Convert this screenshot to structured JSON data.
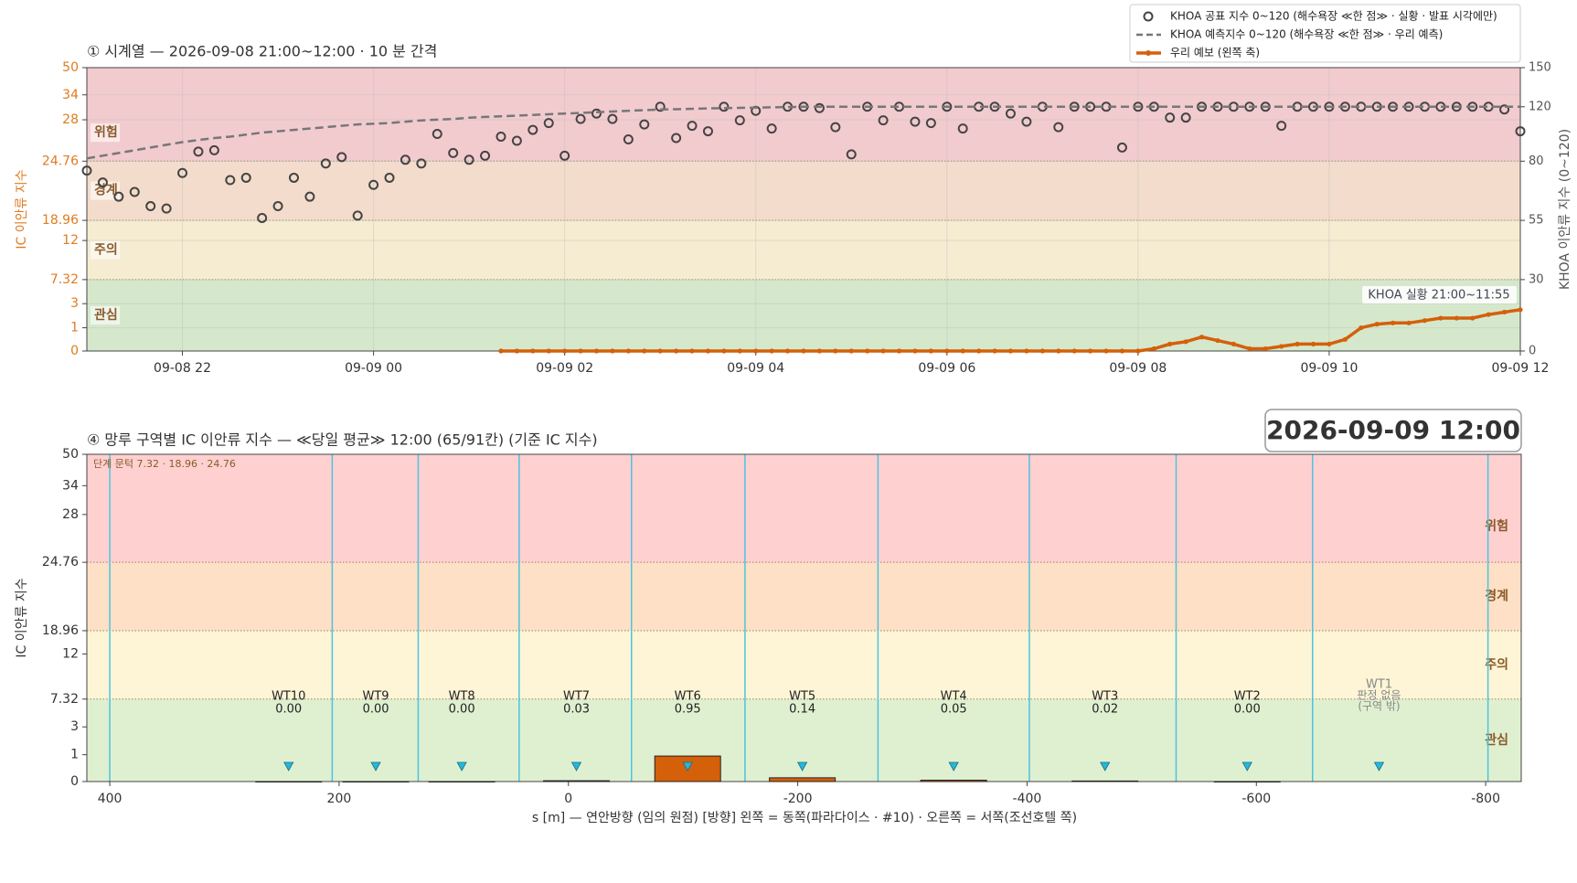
{
  "chart_data": [
    {
      "type": "line",
      "title": "① 시계열 — 2026-09-08 21:00~12:00 · 10 분 간격",
      "ylabel": "IC 이안류 지수",
      "y2label": "KHOA 이안류 지수 (0~120)",
      "x": [
        "09-08 21:00",
        "09-08 21:10",
        "09-08 21:20",
        "09-08 21:30",
        "09-08 21:40",
        "09-08 21:50",
        "09-08 22:00",
        "09-08 22:10",
        "09-08 22:20",
        "09-08 22:30",
        "09-08 22:40",
        "09-08 22:50",
        "09-08 23:00",
        "09-08 23:10",
        "09-08 23:20",
        "09-08 23:30",
        "09-08 23:40",
        "09-08 23:50",
        "09-09 00:00",
        "09-09 00:10",
        "09-09 00:20",
        "09-09 00:30",
        "09-09 00:40",
        "09-09 00:50",
        "09-09 01:00",
        "09-09 01:10",
        "09-09 01:20",
        "09-09 01:30",
        "09-09 01:40",
        "09-09 01:50",
        "09-09 02:00",
        "09-09 02:10",
        "09-09 02:20",
        "09-09 02:30",
        "09-09 02:40",
        "09-09 02:50",
        "09-09 03:00",
        "09-09 03:10",
        "09-09 03:20",
        "09-09 03:30",
        "09-09 03:40",
        "09-09 03:50",
        "09-09 04:00",
        "09-09 04:10",
        "09-09 04:20",
        "09-09 04:30",
        "09-09 04:40",
        "09-09 04:50",
        "09-09 05:00",
        "09-09 05:10",
        "09-09 05:20",
        "09-09 05:30",
        "09-09 05:40",
        "09-09 05:50",
        "09-09 06:00",
        "09-09 06:10",
        "09-09 06:20",
        "09-09 06:30",
        "09-09 06:40",
        "09-09 06:50",
        "09-09 07:00",
        "09-09 07:10",
        "09-09 07:20",
        "09-09 07:30",
        "09-09 07:40",
        "09-09 07:50",
        "09-09 08:00",
        "09-09 08:10",
        "09-09 08:20",
        "09-09 08:30",
        "09-09 08:40",
        "09-09 08:50",
        "09-09 09:00",
        "09-09 09:10",
        "09-09 09:20",
        "09-09 09:30",
        "09-09 09:40",
        "09-09 09:50",
        "09-09 10:00",
        "09-09 10:10",
        "09-09 10:20",
        "09-09 10:30",
        "09-09 10:40",
        "09-09 10:50",
        "09-09 11:00",
        "09-09 11:10",
        "09-09 11:20",
        "09-09 11:30",
        "09-09 11:40",
        "09-09 11:50",
        "09-09 12:00"
      ],
      "xlim": [
        "09-08 21:00",
        "09-09 12:00"
      ],
      "xticks": [
        {
          "value": "09-08 22:00",
          "label": "09-08 22"
        },
        {
          "value": "09-09 00:00",
          "label": "09-09 00"
        },
        {
          "value": "09-09 02:00",
          "label": "09-09 02"
        },
        {
          "value": "09-09 04:00",
          "label": "09-09 04"
        },
        {
          "value": "09-09 06:00",
          "label": "09-09 06"
        },
        {
          "value": "09-09 08:00",
          "label": "09-09 08"
        },
        {
          "value": "09-09 10:00",
          "label": "09-09 10"
        },
        {
          "value": "09-09 12:00",
          "label": "09-09 12"
        }
      ],
      "ylim": [
        0,
        50
      ],
      "yticks": [
        0,
        1,
        3,
        7.32,
        12,
        18.96,
        24.76,
        28,
        34,
        50
      ],
      "y2lim": [
        0,
        150
      ],
      "y2ticks": [
        0,
        30,
        55,
        80,
        120,
        150
      ],
      "grid": true,
      "legend": "upper right",
      "bands": [
        {
          "label": "관심",
          "from": 0,
          "to": 7.32,
          "color": "#d5e8cc"
        },
        {
          "label": "주의",
          "from": 7.32,
          "to": 18.96,
          "color": "#f5ecd2"
        },
        {
          "label": "경계",
          "from": 18.96,
          "to": 24.76,
          "color": "#f3dccb"
        },
        {
          "label": "위험",
          "from": 24.76,
          "to": 50,
          "color": "#f2cbcf"
        }
      ],
      "annotation": "KHOA 실황 21:00~11:55",
      "series": [
        {
          "name": "KHOA 공표 지수 0~120 (해수욕장 ≪한 점≫ · 실황 · 발표 시각에만)",
          "style": "markers",
          "color": "#444444",
          "axis": "y2",
          "values": [
            76,
            71,
            65,
            67,
            61,
            60,
            75,
            87,
            88,
            72,
            73,
            56,
            61,
            73,
            65,
            79,
            83,
            57,
            70,
            73,
            81,
            79,
            100,
            86,
            81,
            84,
            98,
            95,
            103,
            108,
            84,
            111,
            115,
            111,
            96,
            107,
            120,
            97,
            106,
            102,
            120,
            110,
            117,
            104,
            120,
            120,
            119,
            105,
            85,
            120,
            110,
            120,
            109,
            108,
            120,
            104,
            120,
            120,
            115,
            109,
            120,
            105,
            120,
            120,
            120,
            90,
            120,
            120,
            112,
            112,
            120,
            120,
            120,
            120,
            120,
            106,
            120,
            120,
            120,
            120,
            120,
            120,
            120,
            120,
            120,
            120,
            120,
            120,
            120,
            118,
            102
          ]
        },
        {
          "name": "KHOA 예측지수 0~120 (해수욕장 ≪한 점≫ · 우리 예측)",
          "style": "dashed",
          "color": "#777777",
          "axis": "y2",
          "values": [
            82,
            84,
            86,
            88,
            90,
            92,
            94,
            95.5,
            97,
            98,
            99.5,
            101,
            102,
            103,
            104,
            105,
            106,
            107,
            107.5,
            108,
            109,
            110,
            110.5,
            111,
            112,
            112.5,
            113,
            113.5,
            114,
            114.5,
            115,
            115.5,
            116,
            116.5,
            117,
            117.5,
            118,
            118.2,
            118.5,
            118.8,
            119,
            119.2,
            119.4,
            119.6,
            119.8,
            120,
            120,
            120,
            120,
            120,
            120,
            120,
            120,
            120,
            120,
            120,
            120,
            120,
            120,
            120,
            120,
            120,
            120,
            120,
            120,
            120,
            120,
            120,
            120,
            120,
            120,
            120,
            120,
            120,
            120,
            120,
            120,
            120,
            120,
            120,
            120,
            120,
            120,
            120,
            120,
            120,
            120,
            120,
            120,
            120,
            120
          ]
        },
        {
          "name": "우리 예보 (왼쪽 축)",
          "style": "line-markers",
          "color": "#d4600a",
          "values": [
            null,
            null,
            null,
            null,
            null,
            null,
            null,
            null,
            null,
            null,
            null,
            null,
            null,
            null,
            null,
            null,
            null,
            null,
            null,
            null,
            null,
            null,
            null,
            null,
            null,
            null,
            0,
            0,
            0,
            0,
            0,
            0,
            0,
            0,
            0,
            0,
            0,
            0,
            0,
            0,
            0,
            0,
            0,
            0,
            0,
            0,
            0,
            0,
            0,
            0,
            0,
            0,
            0,
            0,
            0,
            0,
            0,
            0,
            0,
            0,
            0,
            0,
            0,
            0,
            0,
            0,
            0,
            0.1,
            0.3,
            0.4,
            0.6,
            0.45,
            0.3,
            0.1,
            0.1,
            0.2,
            0.3,
            0.3,
            0.3,
            0.5,
            1.0,
            1.3,
            1.4,
            1.4,
            1.6,
            1.8,
            1.8,
            1.8,
            2.1,
            2.3,
            2.5
          ]
        }
      ]
    },
    {
      "type": "bar",
      "title": "④ 망루 구역별 IC 이안류 지수 — ≪당일 평균≫ 12:00  (65/91칸)   (기준 IC 지수)",
      "timestamp": "2026-09-09  12:00",
      "note": "단계 문턱 7.32 · 18.96 · 24.76",
      "ylabel": "IC 이안류 지수",
      "xlabel": "s [m] — 연안방향 (임의 원점)     [방향] 왼쪽 = 동쪽(파라다이스 · #10) · 오른쪽 = 서쪽(조선호텔 쪽)",
      "categories": [
        "WT10",
        "WT9",
        "WT8",
        "WT7",
        "WT6",
        "WT5",
        "WT4",
        "WT3",
        "WT2",
        "WT1"
      ],
      "x": [
        244,
        168,
        93,
        -7,
        -104,
        -204,
        -336,
        -468,
        -592,
        -707
      ],
      "values": [
        0,
        0,
        0,
        0.03,
        0.95,
        0.14,
        0.05,
        0.02,
        0,
        null
      ],
      "value_labels": [
        "0.00",
        "0.00",
        "0.00",
        "0.03",
        "0.95",
        "0.14",
        "0.05",
        "0.02",
        "0.00",
        [
          "판정 없음",
          "(구역 밖)"
        ]
      ],
      "boundaries": [
        400,
        206,
        131,
        43,
        -55,
        -154,
        -270,
        -402,
        -530,
        -649,
        -802
      ],
      "color": "#d4600a",
      "xlim": [
        420,
        -831
      ],
      "xticks": [
        400,
        200,
        0,
        -200,
        -400,
        -600,
        -800
      ],
      "ylim": [
        0,
        50
      ],
      "yticks": [
        0,
        1,
        3,
        7.32,
        12,
        18.96,
        24.76,
        28,
        34,
        50
      ],
      "bands": [
        {
          "label": "관심",
          "from": 0,
          "to": 7.32,
          "color": "#dff0d0"
        },
        {
          "label": "주의",
          "from": 7.32,
          "to": 18.96,
          "color": "#fdf5d6"
        },
        {
          "label": "경계",
          "from": 18.96,
          "to": 24.76,
          "color": "#fde0c5"
        },
        {
          "label": "위험",
          "from": 24.76,
          "to": 50,
          "color": "#ffd0d0"
        }
      ]
    }
  ]
}
